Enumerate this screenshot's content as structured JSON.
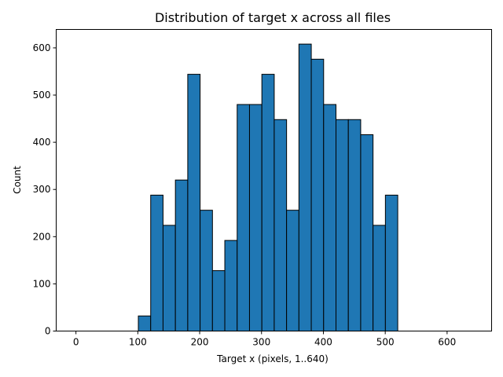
{
  "chart_data": {
    "type": "bar",
    "title": "Distribution of target x across all files",
    "xlabel": "Target x (pixels, 1..640)",
    "ylabel": "Count",
    "xlim": [
      -31.95,
      671.95
    ],
    "ylim": [
      0,
      639
    ],
    "xticks": [
      0,
      100,
      200,
      300,
      400,
      500,
      600
    ],
    "yticks": [
      0,
      100,
      200,
      300,
      400,
      500,
      600
    ],
    "bin_edges": [
      1,
      20.97,
      40.94,
      60.91,
      80.88,
      100.85,
      120.82,
      140.79,
      160.76,
      180.73,
      200.7,
      220.67,
      240.64,
      260.61,
      280.58,
      300.55,
      320.52,
      340.49,
      360.46,
      380.43,
      400.4,
      420.37,
      440.34,
      460.31,
      480.28,
      500.25,
      520.22,
      540.19,
      560.16,
      580.13,
      600.1,
      620.07,
      640.04
    ],
    "values": [
      0,
      0,
      0,
      0,
      0,
      32,
      288,
      224,
      320,
      544,
      256,
      128,
      192,
      480,
      480,
      544,
      448,
      256,
      608,
      576,
      480,
      448,
      448,
      416,
      224,
      288,
      0,
      0,
      0,
      0,
      0,
      0
    ],
    "bar_color": "#1f77b4",
    "edge_color": "#000000",
    "grid": false,
    "legend": "none"
  }
}
